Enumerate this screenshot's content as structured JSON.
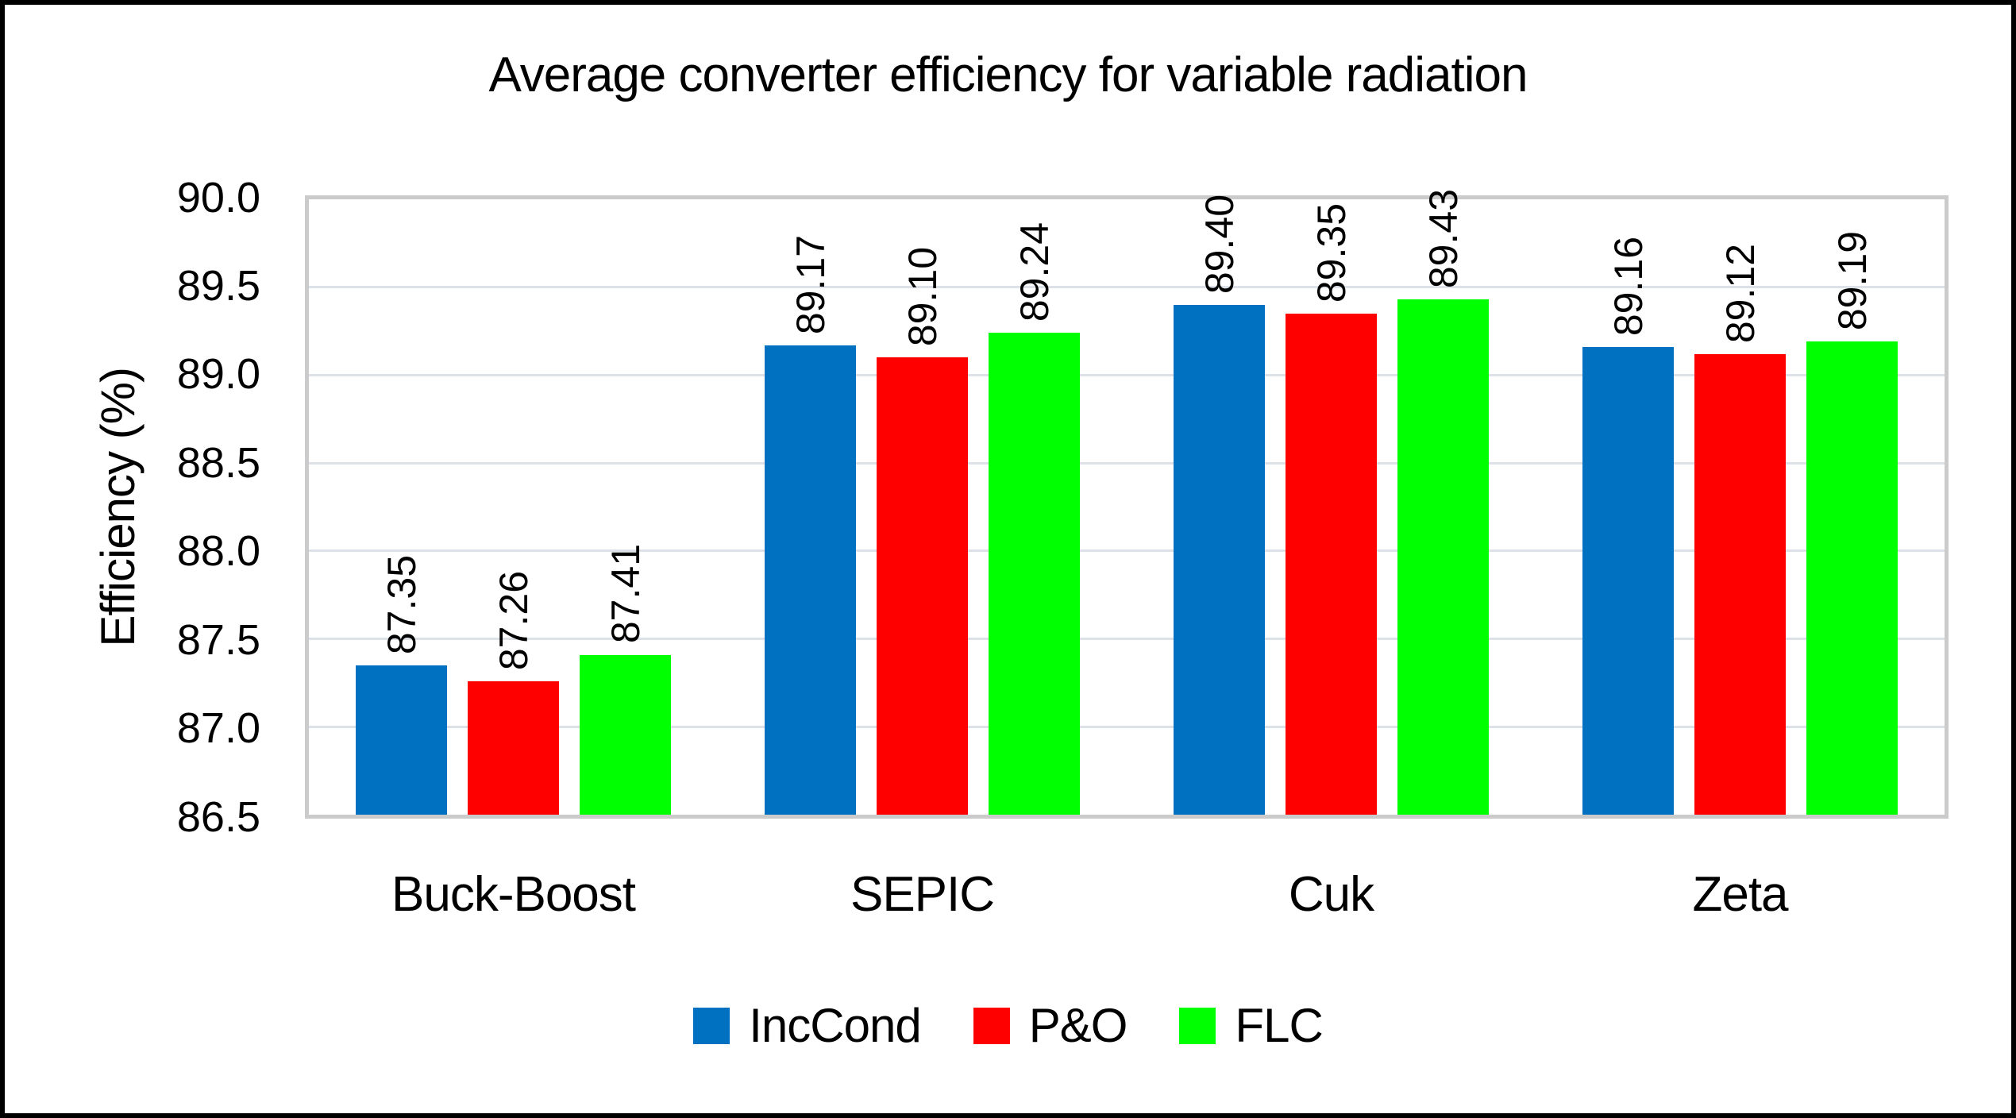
{
  "page": {
    "background": "#FFFFFF",
    "outer_border_color": "#000000"
  },
  "chart_data": {
    "type": "bar",
    "title": "Average converter efficiency for variable radiation",
    "xlabel": "",
    "ylabel": "Efficiency (%)",
    "categories": [
      "Buck-Boost",
      "SEPIC",
      "Cuk",
      "Zeta"
    ],
    "series": [
      {
        "name": "IncCond",
        "color": "#0070C0",
        "values": [
          87.35,
          89.17,
          89.4,
          89.16
        ]
      },
      {
        "name": "P&O",
        "color": "#FF0000",
        "values": [
          87.26,
          89.1,
          89.35,
          89.12
        ]
      },
      {
        "name": "FLC",
        "color": "#00FF00",
        "values": [
          87.41,
          89.24,
          89.43,
          89.19
        ]
      }
    ],
    "value_labels": [
      [
        "87.35",
        "89.17",
        "89.40",
        "89.16"
      ],
      [
        "87.26",
        "89.10",
        "89.35",
        "89.12"
      ],
      [
        "87.41",
        "89.24",
        "89.43",
        "89.19"
      ]
    ],
    "ylim": [
      86.5,
      90.0
    ],
    "ytick_step": 0.5,
    "yticks": [
      "90.0",
      "89.5",
      "89.0",
      "88.5",
      "88.0",
      "87.5",
      "87.0",
      "86.5"
    ],
    "grid": true,
    "gridline_color": "#DDE1E8",
    "plot_border_color": "#CBCBCB",
    "legend_position": "bottom",
    "value_labels_rotated": true
  }
}
